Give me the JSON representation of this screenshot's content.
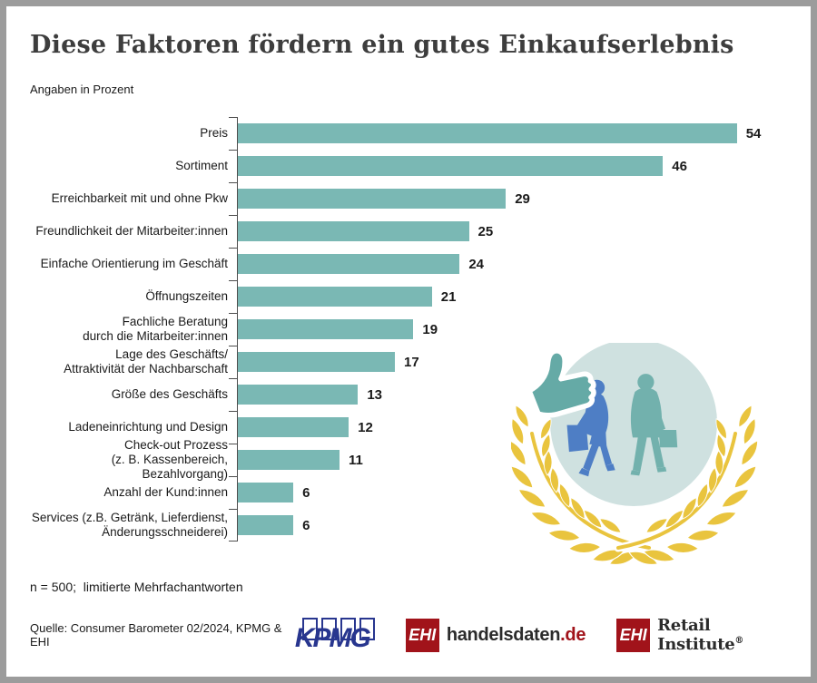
{
  "page": {
    "title": "Diese Faktoren fördern ein gutes Einkaufserlebnis",
    "subtitle": "Angaben in Prozent",
    "footnote": "n = 500;  limitierte Mehrfachantworten",
    "source": "Quelle: Consumer Barometer 02/2024, KPMG & EHI"
  },
  "chart_data": {
    "type": "bar",
    "orientation": "horizontal",
    "title": "Diese Faktoren fördern ein gutes Einkaufserlebnis",
    "subtitle": "Angaben in Prozent",
    "unit": "percent",
    "xlim": [
      0,
      60
    ],
    "grid": false,
    "value_labels": true,
    "categories": [
      "Preis",
      "Sortiment",
      "Erreichbarkeit mit und ohne Pkw",
      "Freundlichkeit der Mitarbeiter:innen",
      "Einfache Orientierung im Geschäft",
      "Öffnungszeiten",
      "Fachliche Beratung\ndurch die Mitarbeiter:innen",
      "Lage des Geschäfts/\nAttraktivität der Nachbarschaft",
      "Größe des Geschäfts",
      "Ladeneinrichtung und Design",
      "Check-out Prozess\n(z. B. Kassenbereich, Bezahlvorgang)",
      "Anzahl der Kund:innen",
      "Services (z.B. Getränk, Lieferdienst,\nÄnderungsschneiderei)"
    ],
    "values": [
      54,
      46,
      29,
      25,
      24,
      21,
      19,
      17,
      13,
      12,
      11,
      6,
      6
    ]
  },
  "illustration": {
    "icons": [
      "thumbs-up-icon",
      "shoppers-icon",
      "laurel-wreath-icon"
    ]
  },
  "logos": {
    "kpmg": {
      "text": "KPMG"
    },
    "ehi_handelsdaten": {
      "box": "EHI",
      "name": "handelsdaten",
      "tld": ".de"
    },
    "ehi_retail": {
      "box": "EHI",
      "name": "Retail Institute",
      "reg": "®"
    }
  },
  "colors": {
    "bar": "#7ab8b4",
    "axis": "#4d4d4d",
    "title_text": "#3d3d3d",
    "text": "#1a1a1a",
    "frame": "#9c9c9c",
    "laurel_gold": "#e9c43e",
    "badge_circle": "#cfe1e0",
    "figure_blue": "#4e7ec5",
    "figure_teal": "#72b1ad",
    "thumb_teal": "#65aaa6",
    "kpmg_blue": "#28368f",
    "ehi_red": "#a1131a"
  }
}
